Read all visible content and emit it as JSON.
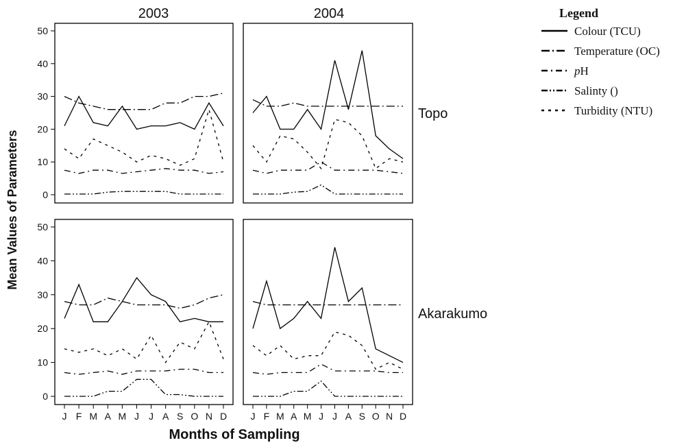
{
  "chart_data": {
    "type": "line",
    "layout": "2x2 facet grid",
    "column_labels": [
      "2003",
      "2004"
    ],
    "row_labels": [
      "Topo",
      "Akarakumo"
    ],
    "xlabel": "Months of Sampling",
    "ylabel": "Mean Values of Parameters",
    "x": [
      "J",
      "F",
      "M",
      "A",
      "M",
      "J",
      "J",
      "A",
      "S",
      "O",
      "N",
      "D"
    ],
    "ylim": [
      0,
      50
    ],
    "yticks": [
      0,
      10,
      20,
      30,
      40,
      50
    ],
    "grid": false,
    "legend": {
      "title": "Legend",
      "placement": "right",
      "entries": [
        {
          "label": "Colour (TCU)",
          "dash": "solid"
        },
        {
          "label": "Temperature (OC)",
          "dash": "long-dash-dot"
        },
        {
          "label": "pH",
          "label_italic": "p",
          "label_rest": "H",
          "dash": "dash-dot"
        },
        {
          "label": "Salinty ()",
          "dash": "dash-dot-dot"
        },
        {
          "label": "Turbidity (NTU)",
          "dash": "short-dash"
        }
      ]
    },
    "panels": [
      {
        "year": "2003",
        "site": "Topo",
        "series": [
          {
            "name": "Colour (TCU)",
            "values": [
              21,
              30,
              22,
              21,
              27,
              20,
              21,
              21,
              22,
              20,
              28,
              21
            ]
          },
          {
            "name": "Temperature (OC)",
            "values": [
              30,
              28,
              27,
              26,
              26,
              26,
              26,
              28,
              28,
              30,
              30,
              31
            ]
          },
          {
            "name": "pH",
            "values": [
              7.5,
              6.5,
              7.5,
              7.5,
              6.5,
              7,
              7.5,
              8,
              7.5,
              7.5,
              6.5,
              7
            ]
          },
          {
            "name": "Salinty ()",
            "values": [
              0.2,
              0.2,
              0.2,
              0.8,
              1,
              1,
              1,
              1,
              0.2,
              0.2,
              0.2,
              0.2
            ]
          },
          {
            "name": "Turbidity (NTU)",
            "values": [
              14,
              11,
              17,
              15,
              13,
              10,
              12,
              11,
              9,
              11,
              26,
              10
            ]
          }
        ]
      },
      {
        "year": "2004",
        "site": "Topo",
        "series": [
          {
            "name": "Colour (TCU)",
            "values": [
              25,
              30,
              20,
              20,
              26,
              20,
              41,
              26,
              44,
              18,
              14,
              11
            ]
          },
          {
            "name": "Temperature (OC)",
            "values": [
              29,
              27,
              27,
              28,
              27,
              27,
              27,
              27,
              27,
              27,
              27,
              27
            ]
          },
          {
            "name": "pH",
            "values": [
              7.5,
              6.5,
              7.5,
              7.5,
              7.5,
              10,
              7.5,
              7.5,
              7.5,
              7.5,
              7,
              6.5
            ]
          },
          {
            "name": "Salinty ()",
            "values": [
              0.2,
              0.2,
              0.2,
              0.8,
              1,
              3,
              0.2,
              0.2,
              0.2,
              0.2,
              0.2,
              0.2
            ]
          },
          {
            "name": "Turbidity (NTU)",
            "values": [
              15,
              10,
              18,
              17,
              13,
              8,
              23,
              22,
              18,
              8,
              11,
              10
            ]
          }
        ]
      },
      {
        "year": "2003",
        "site": "Akarakumo",
        "series": [
          {
            "name": "Colour (TCU)",
            "values": [
              23,
              33,
              22,
              22,
              28,
              35,
              30,
              28,
              22,
              23,
              22,
              22
            ]
          },
          {
            "name": "Temperature (OC)",
            "values": [
              28,
              27,
              27,
              29,
              28,
              27,
              27,
              27,
              26,
              27,
              29,
              30
            ]
          },
          {
            "name": "pH",
            "values": [
              7,
              6.5,
              7,
              7.5,
              6.5,
              7.5,
              7.5,
              7.5,
              8,
              8,
              7,
              7
            ]
          },
          {
            "name": "Salinty ()",
            "values": [
              0,
              0,
              0,
              1.5,
              1.5,
              5,
              5,
              0.5,
              0.5,
              0,
              0,
              0
            ]
          },
          {
            "name": "Turbidity (NTU)",
            "values": [
              14,
              13,
              14,
              12,
              14,
              11,
              18,
              10,
              16,
              14,
              22,
              11
            ]
          }
        ]
      },
      {
        "year": "2004",
        "site": "Akarakumo",
        "series": [
          {
            "name": "Colour (TCU)",
            "values": [
              20,
              34,
              20,
              23,
              28,
              23,
              44,
              28,
              32,
              14,
              12,
              10
            ]
          },
          {
            "name": "Temperature (OC)",
            "values": [
              28,
              27,
              27,
              27,
              27,
              27,
              27,
              27,
              27,
              27,
              27,
              27
            ]
          },
          {
            "name": "pH",
            "values": [
              7,
              6.5,
              7,
              7,
              7,
              9.5,
              7.5,
              7.5,
              7.5,
              7.5,
              7,
              7
            ]
          },
          {
            "name": "Salinty ()",
            "values": [
              0,
              0,
              0,
              1.5,
              1.5,
              4.5,
              0,
              0,
              0,
              0,
              0,
              0
            ]
          },
          {
            "name": "Turbidity (NTU)",
            "values": [
              15,
              12,
              15,
              11,
              12,
              12,
              19,
              18,
              15,
              8,
              10,
              8
            ]
          }
        ]
      }
    ]
  }
}
